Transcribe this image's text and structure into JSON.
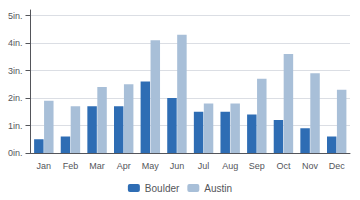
{
  "chart_data": {
    "type": "bar",
    "categories": [
      "Jan",
      "Feb",
      "Mar",
      "Apr",
      "May",
      "Jun",
      "Jul",
      "Aug",
      "Sep",
      "Oct",
      "Nov",
      "Dec"
    ],
    "series": [
      {
        "name": "Boulder",
        "color": "#2e6db4",
        "values": [
          0.5,
          0.6,
          1.7,
          1.7,
          2.6,
          2.0,
          1.5,
          1.5,
          1.4,
          1.2,
          0.9,
          0.6
        ]
      },
      {
        "name": "Austin",
        "color": "#a8bfd8",
        "values": [
          1.9,
          1.7,
          2.4,
          2.5,
          4.1,
          4.3,
          1.8,
          1.8,
          2.7,
          3.6,
          2.9,
          2.3
        ]
      }
    ],
    "ylim": [
      0,
      5.2
    ],
    "yticks": [
      {
        "value": 0,
        "label": "0in."
      },
      {
        "value": 1,
        "label": "1in."
      },
      {
        "value": 2,
        "label": "2in."
      },
      {
        "value": 3,
        "label": "3in."
      },
      {
        "value": 4,
        "label": "4in."
      },
      {
        "value": 5,
        "label": "5in."
      }
    ],
    "grid": true,
    "legend": "bottom"
  }
}
